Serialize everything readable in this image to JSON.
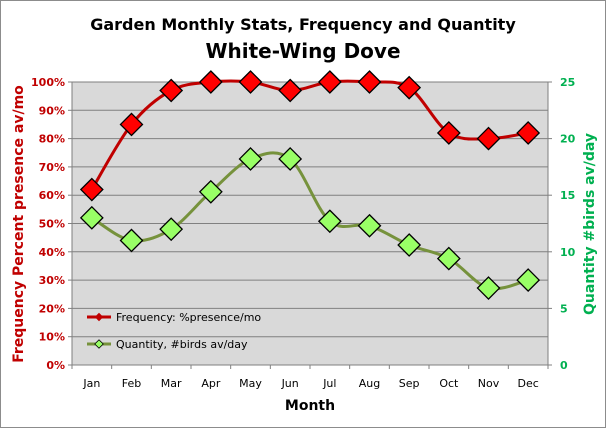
{
  "chart_data": {
    "type": "line",
    "title": "Garden Monthly Stats, Frequency and Quantity",
    "subtitle": "White-Wing Dove",
    "xlabel": "Month",
    "ylabel_left": "Frequency  Percent presence av/mo",
    "ylabel_right": "Quantity  #birds av/day",
    "categories": [
      "Jan",
      "Feb",
      "Mar",
      "Apr",
      "May",
      "Jun",
      "Jul",
      "Aug",
      "Sep",
      "Oct",
      "Nov",
      "Dec"
    ],
    "left_axis": {
      "min": 0,
      "max": 100,
      "ticks": [
        "0%",
        "10%",
        "20%",
        "30%",
        "40%",
        "50%",
        "60%",
        "70%",
        "80%",
        "90%",
        "100%"
      ]
    },
    "right_axis": {
      "min": 0,
      "max": 25,
      "ticks": [
        "0",
        "5",
        "10",
        "15",
        "20",
        "25"
      ]
    },
    "grid": true,
    "legend_position": "bottom-left",
    "series": [
      {
        "name": "Frequency: %presence/mo",
        "axis": "left",
        "color": "#c00000",
        "marker_fill": "#ff0000",
        "values": [
          62,
          85,
          97,
          100,
          100,
          97,
          100,
          100,
          98,
          82,
          80,
          82
        ]
      },
      {
        "name": "Quantity, #birds av/day",
        "axis": "right",
        "color": "#76923c",
        "marker_fill": "#99ff66",
        "values": [
          13.0,
          11.0,
          12.0,
          15.3,
          18.2,
          18.2,
          12.7,
          12.3,
          10.6,
          9.4,
          6.8,
          7.5
        ]
      }
    ]
  }
}
